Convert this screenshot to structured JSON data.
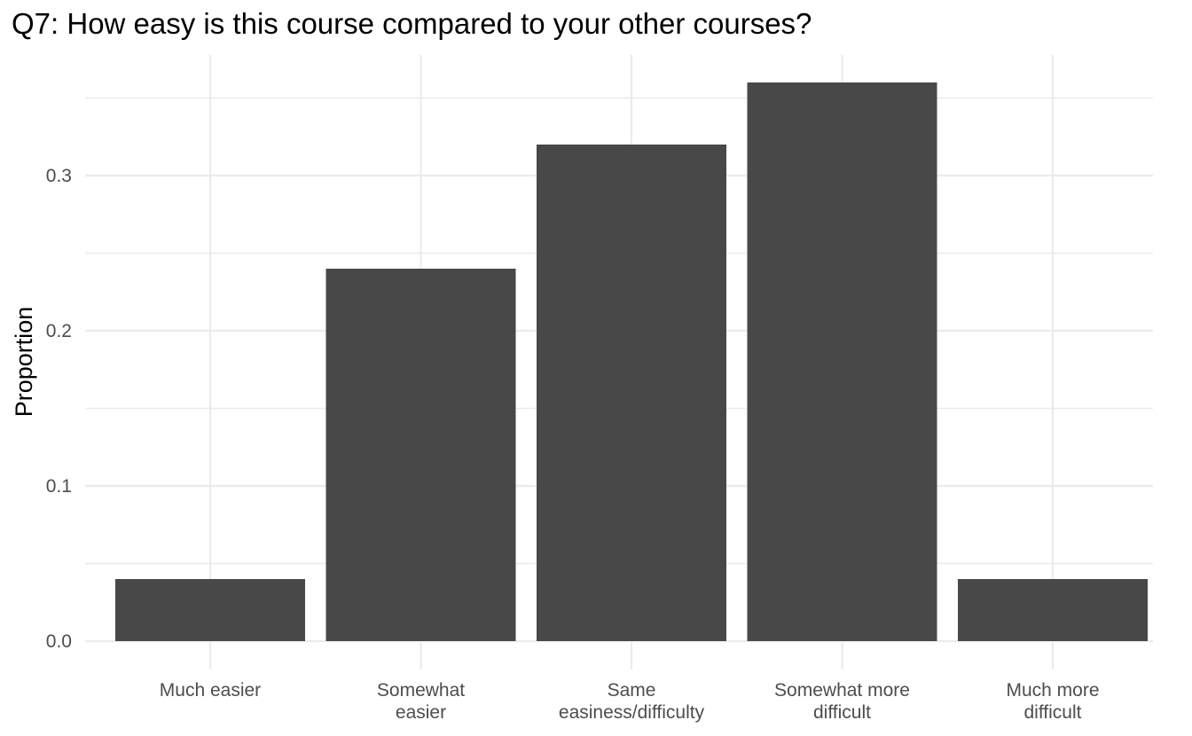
{
  "chart_data": {
    "type": "bar",
    "title": "Q7: How easy is this course compared to your other courses?",
    "xlabel": "",
    "ylabel": "Proportion",
    "categories": [
      "Much easier",
      "Somewhat\neasier",
      "Same\neasiness/difficulty",
      "Somewhat more\ndifficult",
      "Much more\ndifficult"
    ],
    "values": [
      0.04,
      0.24,
      0.32,
      0.36,
      0.04
    ],
    "ylim": [
      0,
      0.36
    ],
    "yticks": [
      "0.0",
      "0.1",
      "0.2",
      "0.3"
    ],
    "grid": true,
    "legend": "none",
    "colors": {
      "bar": "#484848",
      "grid": "#ebebeb",
      "tick_text": "#4d4d4d",
      "title_text": "#000000"
    }
  }
}
